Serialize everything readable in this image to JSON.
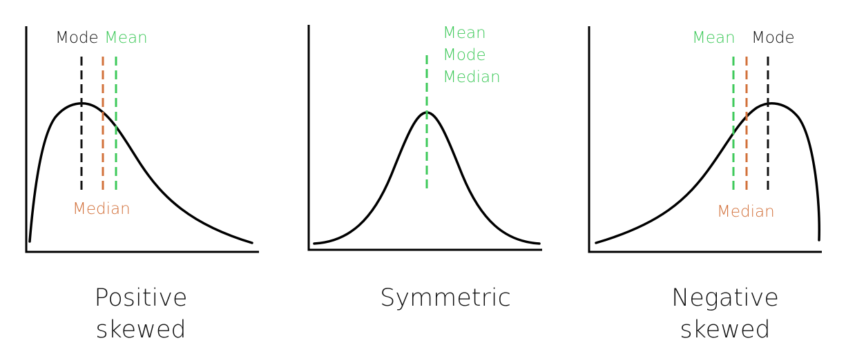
{
  "colors": {
    "mode": "#111111",
    "median": "#d2703a",
    "mean": "#3ec95a"
  },
  "positive": {
    "label_mode": "Mode",
    "label_mean": "Mean",
    "label_median": "Median",
    "title_line1": "Positive",
    "title_line2": "skewed"
  },
  "symmetric": {
    "label_mean": "Mean",
    "label_mode": "Mode",
    "label_median": "Median",
    "title": "Symmetric"
  },
  "negative": {
    "label_mean": "Mean",
    "label_mode": "Mode",
    "label_median": "Median",
    "title_line1": "Negative",
    "title_line2": "skewed"
  }
}
